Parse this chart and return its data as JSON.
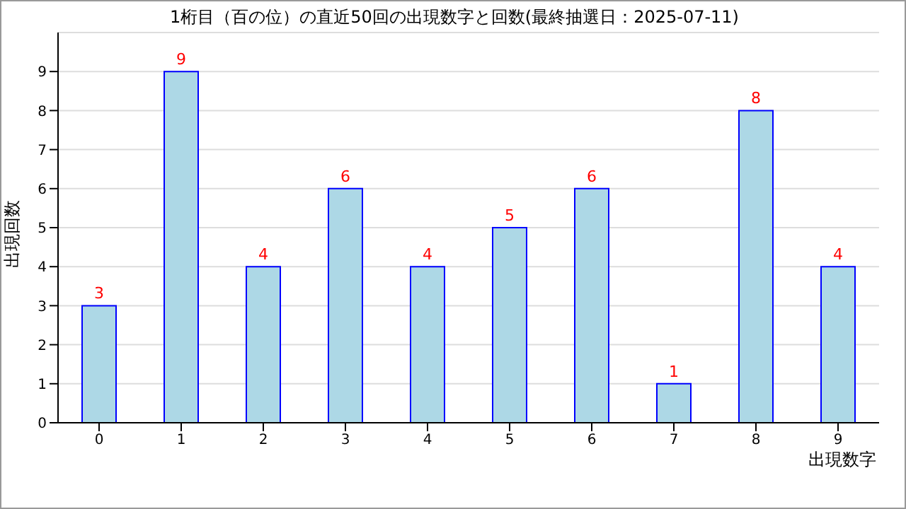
{
  "chart_data": {
    "type": "bar",
    "title": "1桁目（百の位）の直近50回の出現数字と回数(最終抽選日：2025-07-11)",
    "xlabel": "出現数字",
    "ylabel": "出現回数",
    "categories": [
      "0",
      "1",
      "2",
      "3",
      "4",
      "5",
      "6",
      "7",
      "8",
      "9"
    ],
    "values": [
      3,
      9,
      4,
      6,
      4,
      5,
      6,
      1,
      8,
      4
    ],
    "color": "#add8e6",
    "ylim": [
      0,
      10
    ],
    "yticks": [
      0,
      1,
      2,
      3,
      4,
      5,
      6,
      7,
      8,
      9
    ],
    "grid": "y",
    "data_labels": true
  }
}
